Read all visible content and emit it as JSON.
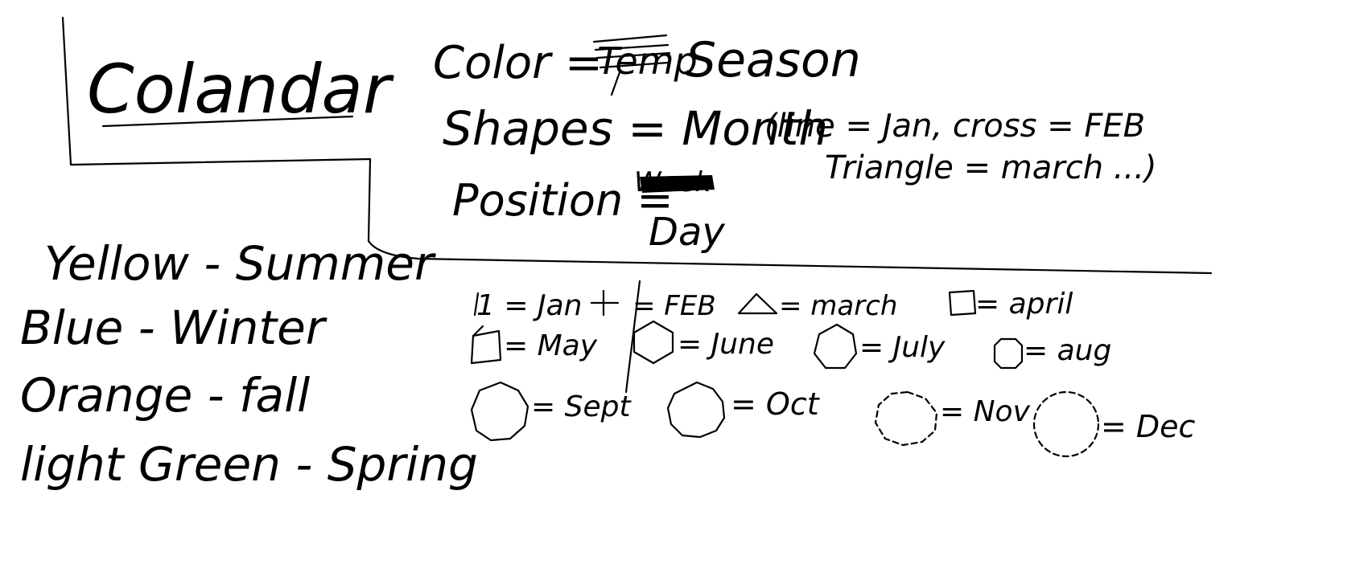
{
  "title": "Colandar",
  "legend_rules": {
    "color_label": "Color =",
    "color_struck": "Temp",
    "color_value": "Season",
    "shapes_label": "Shapes = Month",
    "shapes_detail_1": "(line = Jan, cross = FEB",
    "shapes_detail_2": "Triangle = march ...)",
    "position_label": "Position =",
    "position_struck": "Week",
    "position_value": "Day"
  },
  "seasons": [
    {
      "label": "Yellow - Summer"
    },
    {
      "label": "Blue - Winter"
    },
    {
      "label": "Orange - fall"
    },
    {
      "label": "light Green - Spring"
    }
  ],
  "months": [
    {
      "label": "1 = Jan",
      "shape": "line-icon"
    },
    {
      "label": "= FEB",
      "shape": "cross-icon"
    },
    {
      "label": "= march",
      "shape": "triangle-icon"
    },
    {
      "label": "= april",
      "shape": "square-icon"
    },
    {
      "label": "= May",
      "shape": "pentagon-icon"
    },
    {
      "label": "= June",
      "shape": "hexagon-icon"
    },
    {
      "label": "= July",
      "shape": "heptagon-icon"
    },
    {
      "label": "= aug",
      "shape": "octagon-icon"
    },
    {
      "label": "= Sept",
      "shape": "nonagon-icon"
    },
    {
      "label": "= Oct",
      "shape": "decagon-icon"
    },
    {
      "label": "= Nov",
      "shape": "dashed-polygon-icon"
    },
    {
      "label": "= Dec",
      "shape": "dashed-circle-icon"
    }
  ],
  "colors": {
    "ink": "#000000",
    "paper": "#ffffff"
  }
}
